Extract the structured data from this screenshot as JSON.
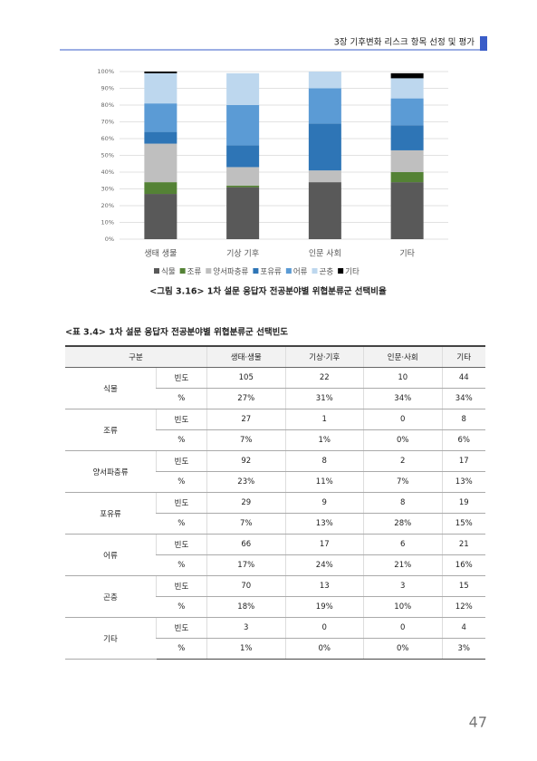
{
  "header": {
    "title": "3장 기후변화 리스크 항목 선정 및 평가"
  },
  "chart_data": {
    "type": "stacked-bar",
    "categories": [
      "생태 생물",
      "기상 기후",
      "인문 사회",
      "기타"
    ],
    "series": [
      {
        "name": "식물",
        "color": "#595959",
        "values": [
          27,
          31,
          34,
          34
        ]
      },
      {
        "name": "조류",
        "color": "#548235",
        "values": [
          7,
          1,
          0,
          6
        ]
      },
      {
        "name": "양서파충류",
        "color": "#bfbfbf",
        "values": [
          23,
          11,
          7,
          13
        ]
      },
      {
        "name": "포유류",
        "color": "#2e75b6",
        "values": [
          7,
          13,
          28,
          15
        ]
      },
      {
        "name": "어류",
        "color": "#5b9bd5",
        "values": [
          17,
          24,
          21,
          16
        ]
      },
      {
        "name": "곤충",
        "color": "#bdd7ee",
        "values": [
          18,
          19,
          10,
          12
        ]
      },
      {
        "name": "기타",
        "color": "#000000",
        "values": [
          1,
          0,
          0,
          3
        ]
      }
    ],
    "ylim": [
      0,
      100
    ],
    "yticks": [
      {
        "value": 0,
        "label": "0%"
      },
      {
        "value": 10,
        "label": "10%"
      },
      {
        "value": 20,
        "label": "20%"
      },
      {
        "value": 30,
        "label": "30%"
      },
      {
        "value": 40,
        "label": "40%"
      },
      {
        "value": 50,
        "label": "50%"
      },
      {
        "value": 60,
        "label": "60%"
      },
      {
        "value": 70,
        "label": "70%"
      },
      {
        "value": 80,
        "label": "80%"
      },
      {
        "value": 90,
        "label": "90%"
      },
      {
        "value": 100,
        "label": "100%"
      }
    ],
    "grid": true,
    "legend": "bottom"
  },
  "figure_caption": "<그림 3.16> 1차 설문 응답자 전공분야별 위협분류군 선택비율",
  "table": {
    "caption": "<표 3.4> 1차 설문 응답자 전공분야별 위협분류군 선택빈도",
    "headers": [
      "구분",
      "생태·생물",
      "기상·기후",
      "인문·사회",
      "기타"
    ],
    "groups": [
      {
        "name": "식물",
        "rows": [
          [
            "빈도",
            "105",
            "22",
            "10",
            "44"
          ],
          [
            "%",
            "27%",
            "31%",
            "34%",
            "34%"
          ]
        ]
      },
      {
        "name": "조류",
        "rows": [
          [
            "빈도",
            "27",
            "1",
            "0",
            "8"
          ],
          [
            "%",
            "7%",
            "1%",
            "0%",
            "6%"
          ]
        ]
      },
      {
        "name": "양서파충류",
        "rows": [
          [
            "빈도",
            "92",
            "8",
            "2",
            "17"
          ],
          [
            "%",
            "23%",
            "11%",
            "7%",
            "13%"
          ]
        ]
      },
      {
        "name": "포유류",
        "rows": [
          [
            "빈도",
            "29",
            "9",
            "8",
            "19"
          ],
          [
            "%",
            "7%",
            "13%",
            "28%",
            "15%"
          ]
        ]
      },
      {
        "name": "어류",
        "rows": [
          [
            "빈도",
            "66",
            "17",
            "6",
            "21"
          ],
          [
            "%",
            "17%",
            "24%",
            "21%",
            "16%"
          ]
        ]
      },
      {
        "name": "곤충",
        "rows": [
          [
            "빈도",
            "70",
            "13",
            "3",
            "15"
          ],
          [
            "%",
            "18%",
            "19%",
            "10%",
            "12%"
          ]
        ]
      },
      {
        "name": "기타",
        "rows": [
          [
            "빈도",
            "3",
            "0",
            "0",
            "4"
          ],
          [
            "%",
            "1%",
            "0%",
            "0%",
            "3%"
          ]
        ]
      }
    ]
  },
  "page_number": "47"
}
